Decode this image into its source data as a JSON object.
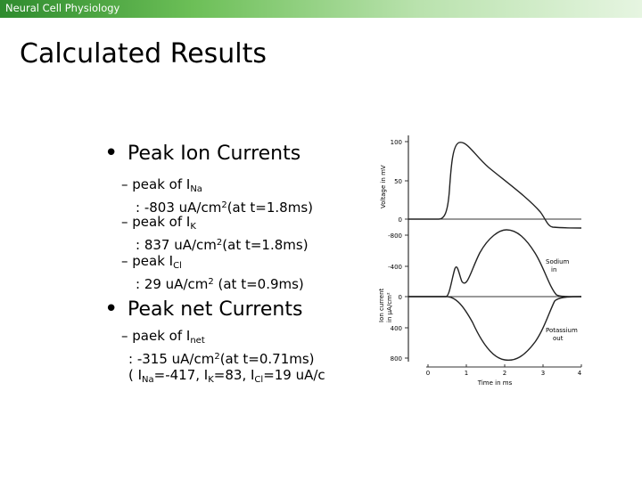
{
  "header": {
    "title": "Neural Cell Physiology"
  },
  "slide": {
    "title": "Calculated Results",
    "bullets": [
      {
        "text": "Peak Ion Currents",
        "items": [
          {
            "line1_prefix": "– peak of I",
            "line1_sub": "Na",
            "line2": ": -803 uA/cm",
            "line2_sup": "2",
            "line2_suffix": "(at t=1.8ms)"
          },
          {
            "line1_prefix": "– peak of I",
            "line1_sub": "K",
            "line2": ":  837 uA/cm",
            "line2_sup": "2",
            "line2_suffix": "(at t=1.8ms)"
          },
          {
            "line1_prefix": "– peak I",
            "line1_sub": "Cl",
            "line2": ":  29 uA/cm",
            "line2_sup": "2",
            "line2_suffix": " (at t=0.9ms)"
          }
        ]
      },
      {
        "text": "Peak net Currents",
        "items": [
          {
            "line1_prefix": "– paek of I",
            "line1_sub": "net",
            "line2": ": -315 uA/cm",
            "line2_sup": "2",
            "line2_suffix": "(at t=0.71ms)",
            "line3": {
              "p1": "( I",
              "s1": "Na",
              "p2": "=-417, I",
              "s2": "K",
              "p3": "=83, I",
              "s3": "Cl",
              "p4": "=19 uA/c"
            }
          }
        ]
      }
    ]
  },
  "figure": {
    "top_panel": {
      "ylabel": "Voltage in mV",
      "yticks": [
        "100",
        "50",
        "0"
      ]
    },
    "bottom_panel": {
      "ylabel_line1": "Ion current",
      "ylabel_line2": "in μA/cm²",
      "yticks": [
        "-800",
        "-400",
        "0",
        "400",
        "800"
      ],
      "label_sodium_1": "Sodium",
      "label_sodium_2": "in",
      "label_potassium_1": "Potassium",
      "label_potassium_2": "out"
    },
    "xaxis": {
      "ticks": [
        "0",
        "1",
        "2",
        "3",
        "4"
      ],
      "label": "Time in ms"
    }
  }
}
